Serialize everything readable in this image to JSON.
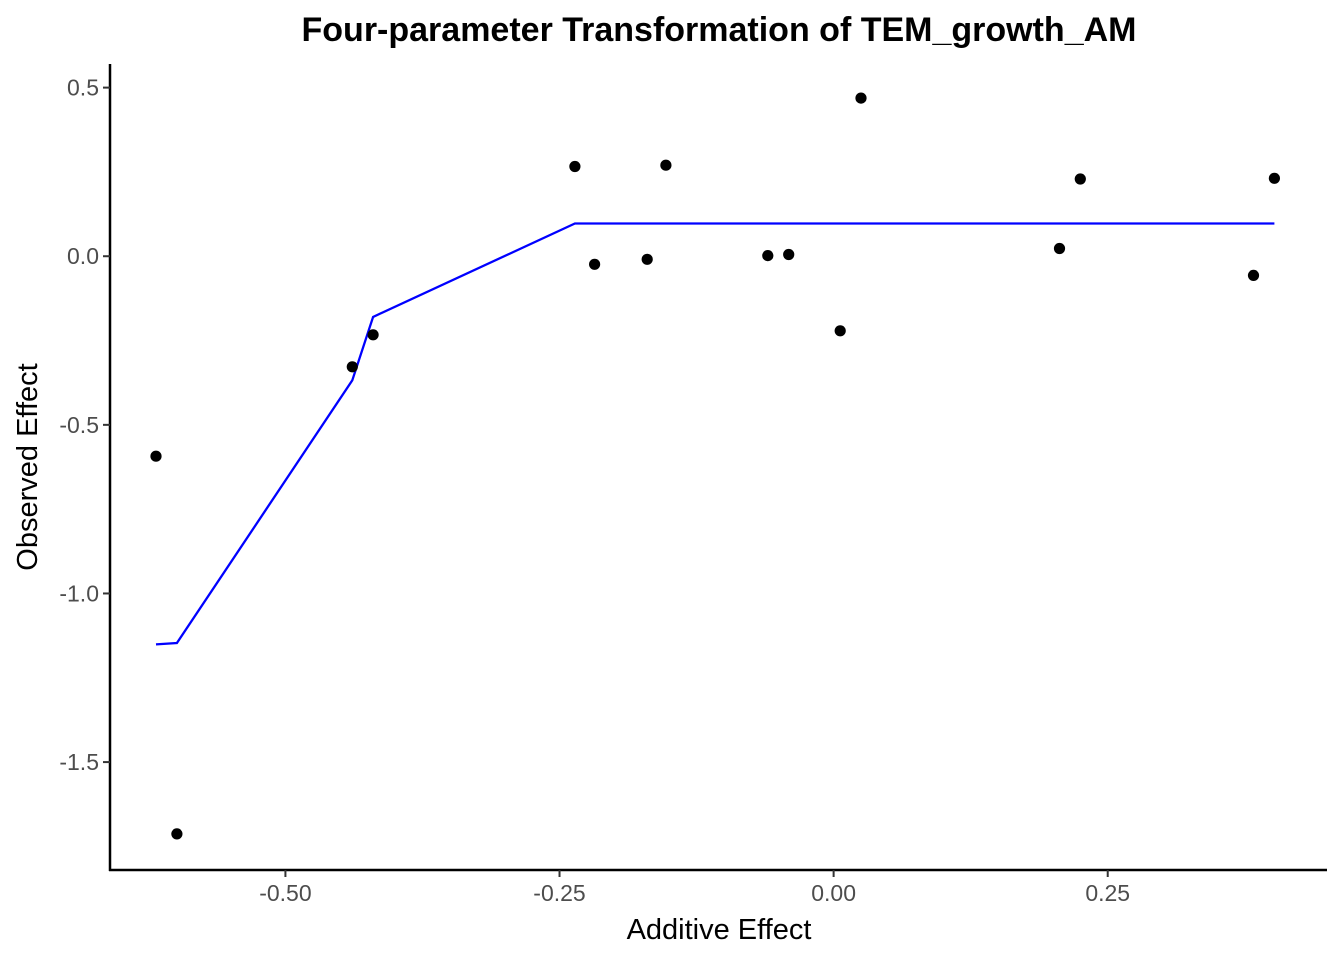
{
  "chart_data": {
    "type": "scatter",
    "title": "Four-parameter Transformation of TEM_growth_AM",
    "xlabel": "Additive Effect",
    "ylabel": "Observed Effect",
    "xlim": [
      -0.66,
      0.45
    ],
    "ylim": [
      -1.82,
      0.57
    ],
    "grid": false,
    "x_ticks": [
      {
        "value": -0.5,
        "label": "-0.50"
      },
      {
        "value": -0.25,
        "label": "-0.25"
      },
      {
        "value": 0.0,
        "label": "0.00"
      },
      {
        "value": 0.25,
        "label": "0.25"
      }
    ],
    "y_ticks": [
      {
        "value": 0.5,
        "label": "0.5"
      },
      {
        "value": 0.0,
        "label": "0.0"
      },
      {
        "value": -0.5,
        "label": "-0.5"
      },
      {
        "value": -1.0,
        "label": "-1.0"
      },
      {
        "value": -1.5,
        "label": "-1.5"
      }
    ],
    "points": {
      "color": "#000000",
      "x": [
        -0.618,
        -0.599,
        -0.439,
        -0.42,
        -0.236,
        -0.218,
        -0.17,
        -0.153,
        -0.06,
        -0.041,
        0.006,
        0.025,
        0.206,
        0.225,
        0.383,
        0.402
      ],
      "y": [
        -0.593,
        -1.713,
        -0.328,
        -0.233,
        0.266,
        -0.024,
        -0.009,
        0.27,
        0.002,
        0.005,
        -0.221,
        0.469,
        0.023,
        0.229,
        -0.057,
        0.231
      ]
    },
    "fit_line": {
      "color": "#0000ff",
      "x": [
        -0.618,
        -0.599,
        -0.439,
        -0.42,
        -0.236,
        0.402
      ],
      "y": [
        -1.151,
        -1.147,
        -0.368,
        -0.18,
        0.097,
        0.097
      ]
    }
  }
}
